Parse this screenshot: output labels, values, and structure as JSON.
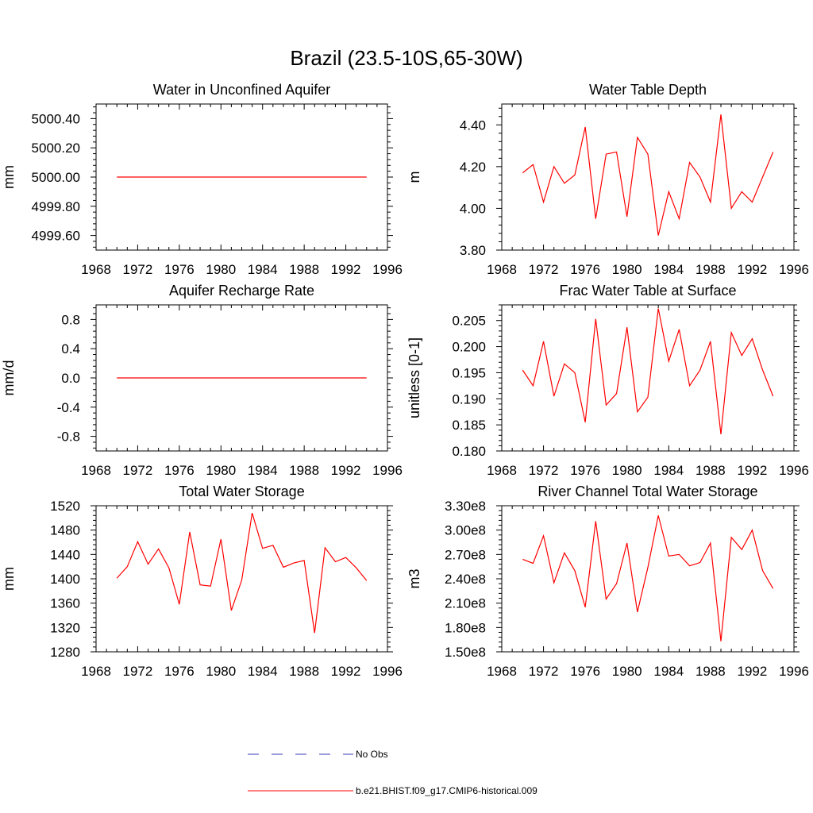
{
  "figure": {
    "title": "Brazil (23.5-10S,65-30W)"
  },
  "legend": {
    "entries": [
      {
        "label": "No Obs",
        "color": "#3b3bb8",
        "style": "dashed"
      },
      {
        "label": "b.e21.BHIST.f09_g17.CMIP6-historical.009",
        "color": "#ff0000",
        "style": "solid"
      }
    ]
  },
  "chart_data": [
    {
      "type": "line",
      "title": "Water in Unconfined Aquifer",
      "ylabel": "mm",
      "xlim": [
        1968,
        1996
      ],
      "ylim": [
        4999.5,
        5000.5
      ],
      "x_ticks": [
        "1968",
        "1972",
        "1976",
        "1980",
        "1984",
        "1988",
        "1992",
        "1996"
      ],
      "y_tick_values": [
        4999.6,
        4999.8,
        5000.0,
        5000.2,
        5000.4
      ],
      "y_tick_labels": [
        "4999.60",
        "4999.80",
        "5000.00",
        "5000.20",
        "5000.40"
      ],
      "x": [
        1970,
        1971,
        1972,
        1973,
        1974,
        1975,
        1976,
        1977,
        1978,
        1979,
        1980,
        1981,
        1982,
        1983,
        1984,
        1985,
        1986,
        1987,
        1988,
        1989,
        1990,
        1991,
        1992,
        1993,
        1994
      ],
      "series": [
        {
          "color": "#ff0000",
          "values": [
            5000,
            5000,
            5000,
            5000,
            5000,
            5000,
            5000,
            5000,
            5000,
            5000,
            5000,
            5000,
            5000,
            5000,
            5000,
            5000,
            5000,
            5000,
            5000,
            5000,
            5000,
            5000,
            5000,
            5000,
            5000
          ]
        }
      ]
    },
    {
      "type": "line",
      "title": "Water Table Depth",
      "ylabel": "m",
      "xlim": [
        1968,
        1996
      ],
      "ylim": [
        3.8,
        4.5
      ],
      "x_ticks": [
        "1968",
        "1972",
        "1976",
        "1980",
        "1984",
        "1988",
        "1992",
        "1996"
      ],
      "y_tick_values": [
        3.8,
        4.0,
        4.2,
        4.4
      ],
      "y_tick_labels": [
        "3.80",
        "4.00",
        "4.20",
        "4.40"
      ],
      "x": [
        1970,
        1971,
        1972,
        1973,
        1974,
        1975,
        1976,
        1977,
        1978,
        1979,
        1980,
        1981,
        1982,
        1983,
        1984,
        1985,
        1986,
        1987,
        1988,
        1989,
        1990,
        1991,
        1992,
        1993,
        1994
      ],
      "series": [
        {
          "color": "#ff0000",
          "values": [
            4.17,
            4.21,
            4.03,
            4.2,
            4.12,
            4.16,
            4.39,
            3.95,
            4.26,
            4.27,
            3.96,
            4.34,
            4.26,
            3.87,
            4.08,
            3.95,
            4.22,
            4.15,
            4.03,
            4.45,
            4.0,
            4.08,
            4.03,
            4.15,
            4.27
          ]
        }
      ]
    },
    {
      "type": "line",
      "title": "Aquifer Recharge Rate",
      "ylabel": "mm/d",
      "xlim": [
        1968,
        1996
      ],
      "ylim": [
        -1.0,
        1.0
      ],
      "x_ticks": [
        "1968",
        "1972",
        "1976",
        "1980",
        "1984",
        "1988",
        "1992",
        "1996"
      ],
      "y_tick_values": [
        -0.8,
        -0.4,
        0.0,
        0.4,
        0.8
      ],
      "y_tick_labels": [
        "-0.8",
        "-0.4",
        "0.0",
        "0.4",
        "0.8"
      ],
      "x": [
        1970,
        1971,
        1972,
        1973,
        1974,
        1975,
        1976,
        1977,
        1978,
        1979,
        1980,
        1981,
        1982,
        1983,
        1984,
        1985,
        1986,
        1987,
        1988,
        1989,
        1990,
        1991,
        1992,
        1993,
        1994
      ],
      "series": [
        {
          "color": "#ff0000",
          "values": [
            0,
            0,
            0,
            0,
            0,
            0,
            0,
            0,
            0,
            0,
            0,
            0,
            0,
            0,
            0,
            0,
            0,
            0,
            0,
            0,
            0,
            0,
            0,
            0,
            0
          ]
        }
      ]
    },
    {
      "type": "line",
      "title": "Frac Water Table at Surface",
      "ylabel": "unitless [0-1]",
      "xlim": [
        1968,
        1996
      ],
      "ylim": [
        0.18,
        0.208
      ],
      "x_ticks": [
        "1968",
        "1972",
        "1976",
        "1980",
        "1984",
        "1988",
        "1992",
        "1996"
      ],
      "y_tick_values": [
        0.18,
        0.185,
        0.19,
        0.195,
        0.2,
        0.205
      ],
      "y_tick_labels": [
        "0.180",
        "0.185",
        "0.190",
        "0.195",
        "0.200",
        "0.205"
      ],
      "x": [
        1970,
        1971,
        1972,
        1973,
        1974,
        1975,
        1976,
        1977,
        1978,
        1979,
        1980,
        1981,
        1982,
        1983,
        1984,
        1985,
        1986,
        1987,
        1988,
        1989,
        1990,
        1991,
        1992,
        1993,
        1994
      ],
      "series": [
        {
          "color": "#ff0000",
          "values": [
            0.1955,
            0.1925,
            0.201,
            0.1905,
            0.1967,
            0.195,
            0.1855,
            0.2053,
            0.1888,
            0.191,
            0.2037,
            0.1875,
            0.1903,
            0.2073,
            0.1972,
            0.2033,
            0.1925,
            0.1955,
            0.201,
            0.1832,
            0.2027,
            0.1983,
            0.2015,
            0.1955,
            0.1905
          ]
        }
      ]
    },
    {
      "type": "line",
      "title": "Total Water Storage",
      "ylabel": "mm",
      "xlim": [
        1968,
        1996
      ],
      "ylim": [
        1280,
        1520
      ],
      "x_ticks": [
        "1968",
        "1972",
        "1976",
        "1980",
        "1984",
        "1988",
        "1992",
        "1996"
      ],
      "y_tick_values": [
        1280,
        1320,
        1360,
        1400,
        1440,
        1480,
        1520
      ],
      "y_tick_labels": [
        "1280",
        "1320",
        "1360",
        "1400",
        "1440",
        "1480",
        "1520"
      ],
      "x": [
        1970,
        1971,
        1972,
        1973,
        1974,
        1975,
        1976,
        1977,
        1978,
        1979,
        1980,
        1981,
        1982,
        1983,
        1984,
        1985,
        1986,
        1987,
        1988,
        1989,
        1990,
        1991,
        1992,
        1993,
        1994
      ],
      "series": [
        {
          "color": "#ff0000",
          "values": [
            1401,
            1420,
            1461,
            1424,
            1449,
            1418,
            1358,
            1477,
            1390,
            1388,
            1465,
            1348,
            1398,
            1508,
            1450,
            1455,
            1419,
            1426,
            1430,
            1311,
            1451,
            1428,
            1435,
            1418,
            1397
          ]
        }
      ]
    },
    {
      "type": "line",
      "title": "River Channel Total Water Storage",
      "ylabel": "m3",
      "xlim": [
        1968,
        1996
      ],
      "ylim": [
        150000000,
        330000000
      ],
      "x_ticks": [
        "1968",
        "1972",
        "1976",
        "1980",
        "1984",
        "1988",
        "1992",
        "1996"
      ],
      "y_tick_values": [
        150000000,
        180000000,
        210000000,
        240000000,
        270000000,
        300000000,
        330000000
      ],
      "y_tick_labels": [
        "1.50e8",
        "1.80e8",
        "2.10e8",
        "2.40e8",
        "2.70e8",
        "3.00e8",
        "3.30e8"
      ],
      "x": [
        1970,
        1971,
        1972,
        1973,
        1974,
        1975,
        1976,
        1977,
        1978,
        1979,
        1980,
        1981,
        1982,
        1983,
        1984,
        1985,
        1986,
        1987,
        1988,
        1989,
        1990,
        1991,
        1992,
        1993,
        1994
      ],
      "series": [
        {
          "color": "#ff0000",
          "values": [
            264000000,
            259000000,
            293000000,
            235000000,
            272000000,
            250000000,
            205000000,
            311000000,
            215000000,
            234000000,
            284000000,
            199000000,
            254000000,
            318000000,
            268000000,
            270000000,
            256000000,
            260000000,
            284000000,
            163000000,
            291000000,
            276000000,
            300000000,
            250000000,
            228000000
          ]
        }
      ]
    }
  ]
}
